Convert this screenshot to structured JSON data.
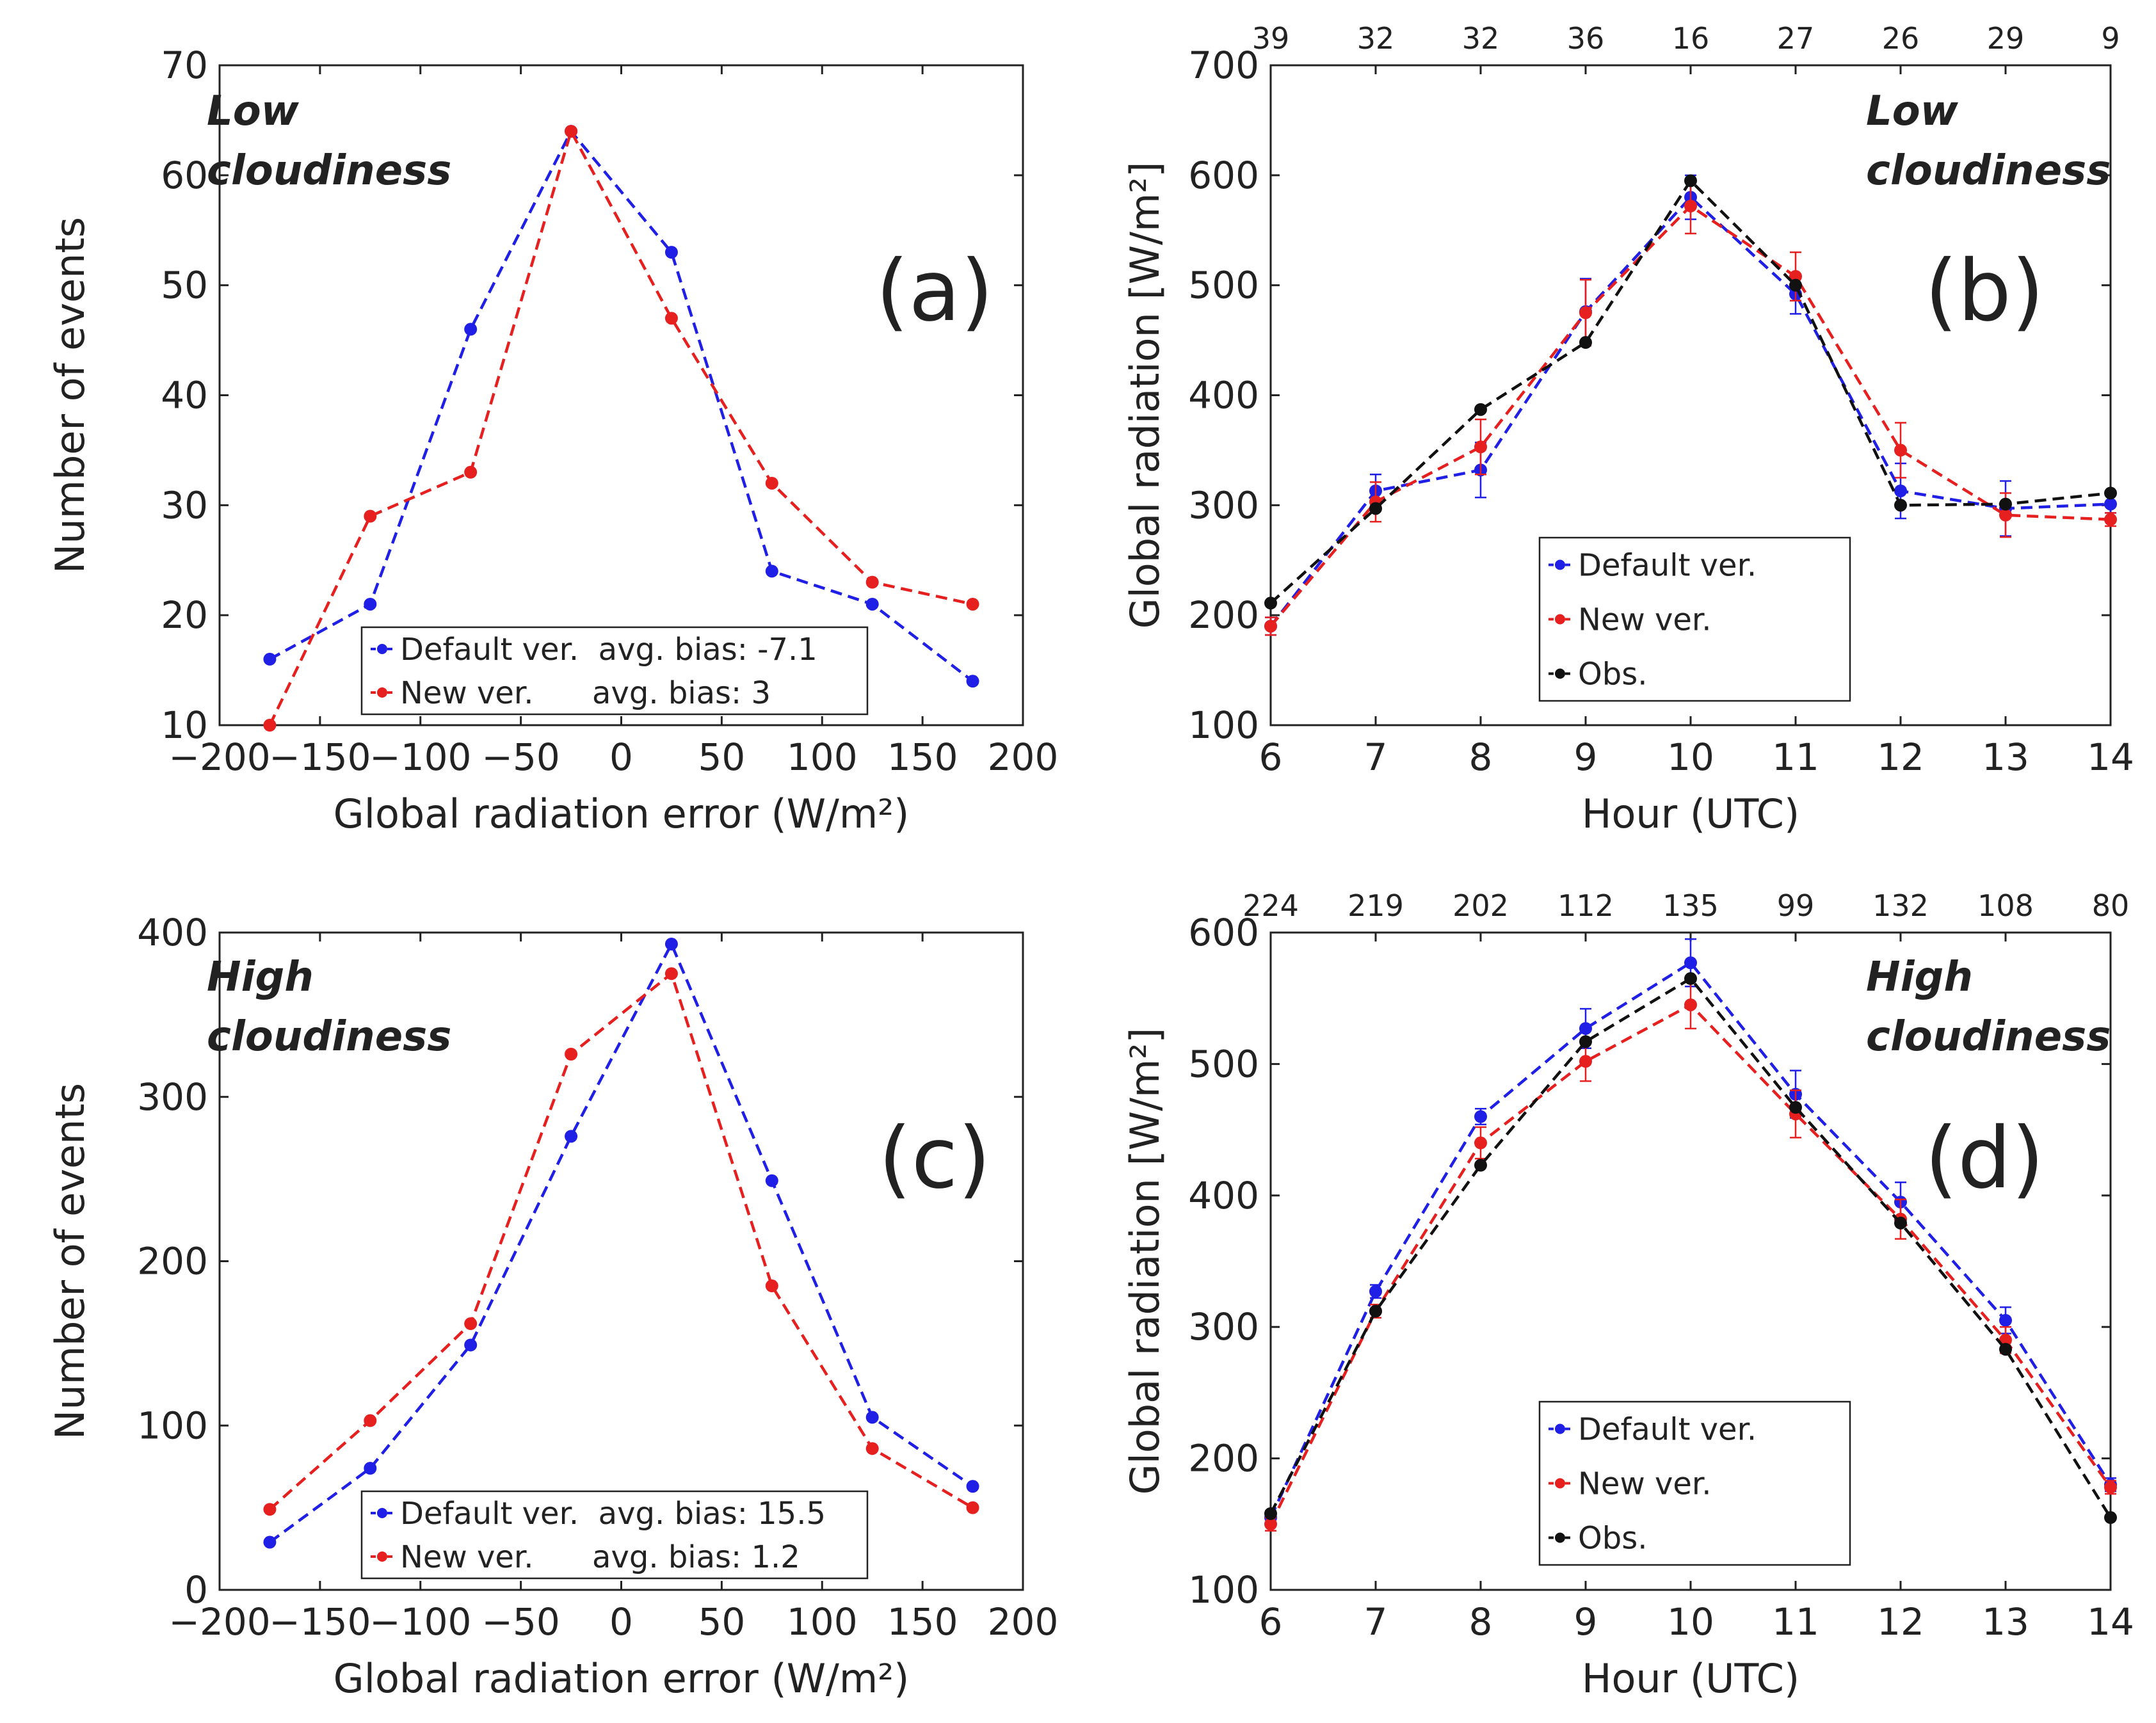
{
  "chart_data": [
    {
      "id": "a",
      "type": "line",
      "panel_label": "(a)",
      "condition_label": [
        "Low",
        "cloudiness"
      ],
      "xlabel": "Global radiation error",
      "xlabel_unit": "(W/m²)",
      "ylabel": "Number of events",
      "xlim": [
        -200,
        200
      ],
      "ylim": [
        10,
        70
      ],
      "xticks": [
        -200,
        -150,
        -100,
        -50,
        0,
        50,
        100,
        150,
        200
      ],
      "yticks": [
        10,
        20,
        30,
        40,
        50,
        60,
        70
      ],
      "legend_position": "bottom-center",
      "x": [
        -175,
        -125,
        -75,
        -25,
        25,
        75,
        125,
        175
      ],
      "series": [
        {
          "name": "Default ver.",
          "legend": "Default ver.  avg. bias: -7.1",
          "color": "#1f1fe6",
          "values": [
            16,
            21,
            46,
            64,
            53,
            24,
            21,
            14
          ]
        },
        {
          "name": "New ver.",
          "legend": "New ver.      avg. bias: 3",
          "color": "#e61f1f",
          "values": [
            10,
            29,
            33,
            64,
            47,
            32,
            23,
            21
          ]
        }
      ]
    },
    {
      "id": "b",
      "type": "line",
      "panel_label": "(b)",
      "condition_label": [
        "Low",
        "cloudiness"
      ],
      "xlabel": "Hour (UTC)",
      "ylabel": "Global radiation [W/m²]",
      "xlim": [
        6,
        14
      ],
      "ylim": [
        100,
        700
      ],
      "xticks": [
        6,
        7,
        8,
        9,
        10,
        11,
        12,
        13,
        14
      ],
      "yticks": [
        100,
        200,
        300,
        400,
        500,
        600,
        700
      ],
      "top_counts": [
        39,
        32,
        32,
        36,
        16,
        27,
        26,
        29,
        9
      ],
      "legend_position": "bottom-center",
      "x": [
        6,
        7,
        8,
        9,
        10,
        11,
        12,
        13,
        14
      ],
      "series": [
        {
          "name": "Default ver.",
          "color": "#1f1fe6",
          "values": [
            190,
            313,
            332,
            476,
            580,
            492,
            313,
            297,
            301
          ],
          "errors": [
            8,
            15,
            25,
            30,
            20,
            18,
            25,
            25,
            8
          ]
        },
        {
          "name": "New ver.",
          "color": "#e61f1f",
          "values": [
            190,
            303,
            353,
            475,
            572,
            508,
            350,
            291,
            287
          ],
          "errors": [
            8,
            18,
            25,
            30,
            25,
            22,
            25,
            20,
            6
          ]
        },
        {
          "name": "Obs.",
          "color": "#111111",
          "values": [
            211,
            297,
            387,
            448,
            595,
            500,
            300,
            301,
            311
          ]
        }
      ]
    },
    {
      "id": "c",
      "type": "line",
      "panel_label": "(c)",
      "condition_label": [
        "High",
        "cloudiness"
      ],
      "xlabel": "Global radiation error",
      "xlabel_unit": "(W/m²)",
      "ylabel": "Number of events",
      "xlim": [
        -200,
        200
      ],
      "ylim": [
        0,
        400
      ],
      "xticks": [
        -200,
        -150,
        -100,
        -50,
        0,
        50,
        100,
        150,
        200
      ],
      "yticks": [
        0,
        100,
        200,
        300,
        400
      ],
      "legend_position": "bottom-center",
      "x": [
        -175,
        -125,
        -75,
        -25,
        25,
        75,
        125,
        175
      ],
      "series": [
        {
          "name": "Default ver.",
          "legend": "Default ver.  avg. bias: 15.5",
          "color": "#1f1fe6",
          "values": [
            29,
            74,
            149,
            276,
            393,
            249,
            105,
            63
          ]
        },
        {
          "name": "New ver.",
          "legend": "New ver.      avg. bias: 1.2",
          "color": "#e61f1f",
          "values": [
            49,
            103,
            162,
            326,
            375,
            185,
            86,
            50
          ]
        }
      ]
    },
    {
      "id": "d",
      "type": "line",
      "panel_label": "(d)",
      "condition_label": [
        "High",
        "cloudiness"
      ],
      "xlabel": "Hour (UTC)",
      "ylabel": "Global radiation [W/m²]",
      "xlim": [
        6,
        14
      ],
      "ylim": [
        100,
        600
      ],
      "xticks": [
        6,
        7,
        8,
        9,
        10,
        11,
        12,
        13,
        14
      ],
      "yticks": [
        100,
        200,
        300,
        400,
        500,
        600
      ],
      "top_counts": [
        224,
        219,
        202,
        112,
        135,
        99,
        132,
        108,
        80
      ],
      "legend_position": "bottom-center",
      "x": [
        6,
        7,
        8,
        9,
        10,
        11,
        12,
        13,
        14
      ],
      "series": [
        {
          "name": "Default ver.",
          "color": "#1f1fe6",
          "values": [
            155,
            327,
            460,
            527,
            577,
            477,
            395,
            305,
            180
          ],
          "errors": [
            5,
            5,
            6,
            15,
            18,
            18,
            15,
            10,
            5
          ]
        },
        {
          "name": "New ver.",
          "color": "#e61f1f",
          "values": [
            150,
            312,
            440,
            502,
            545,
            462,
            382,
            290,
            178
          ],
          "errors": [
            5,
            5,
            12,
            15,
            18,
            18,
            15,
            10,
            5
          ]
        },
        {
          "name": "Obs.",
          "color": "#111111",
          "values": [
            158,
            312,
            423,
            517,
            565,
            467,
            379,
            283,
            155
          ]
        }
      ]
    }
  ]
}
